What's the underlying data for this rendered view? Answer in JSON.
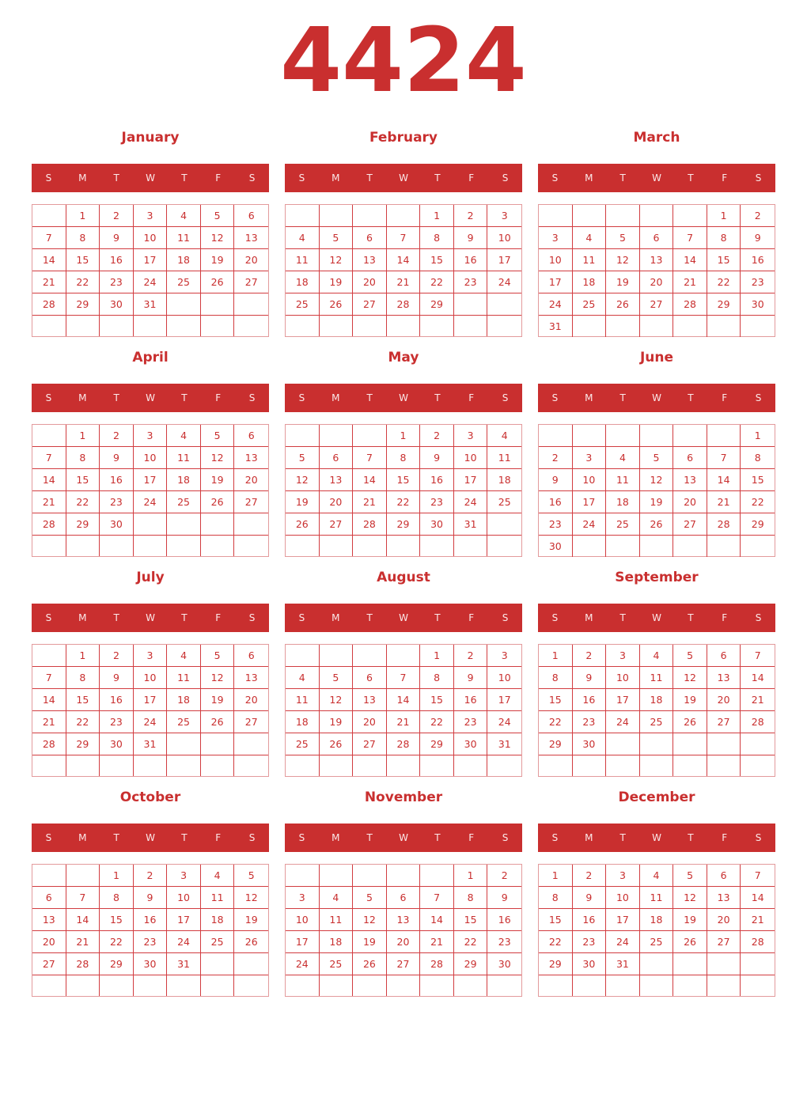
{
  "year": "4424",
  "weekdays": [
    "S",
    "M",
    "T",
    "W",
    "T",
    "F",
    "S"
  ],
  "months": [
    {
      "name": "January",
      "weeks": [
        [
          "",
          "1",
          "2",
          "3",
          "4",
          "5",
          "6"
        ],
        [
          "7",
          "8",
          "9",
          "10",
          "11",
          "12",
          "13"
        ],
        [
          "14",
          "15",
          "16",
          "17",
          "18",
          "19",
          "20"
        ],
        [
          "21",
          "22",
          "23",
          "24",
          "25",
          "26",
          "27"
        ],
        [
          "28",
          "29",
          "30",
          "31",
          "",
          "",
          ""
        ],
        [
          "",
          "",
          "",
          "",
          "",
          "",
          ""
        ]
      ]
    },
    {
      "name": "February",
      "weeks": [
        [
          "",
          "",
          "",
          "",
          "1",
          "2",
          "3"
        ],
        [
          "4",
          "5",
          "6",
          "7",
          "8",
          "9",
          "10"
        ],
        [
          "11",
          "12",
          "13",
          "14",
          "15",
          "16",
          "17"
        ],
        [
          "18",
          "19",
          "20",
          "21",
          "22",
          "23",
          "24"
        ],
        [
          "25",
          "26",
          "27",
          "28",
          "29",
          "",
          ""
        ],
        [
          "",
          "",
          "",
          "",
          "",
          "",
          ""
        ]
      ]
    },
    {
      "name": "March",
      "weeks": [
        [
          "",
          "",
          "",
          "",
          "",
          "1",
          "2"
        ],
        [
          "3",
          "4",
          "5",
          "6",
          "7",
          "8",
          "9"
        ],
        [
          "10",
          "11",
          "12",
          "13",
          "14",
          "15",
          "16"
        ],
        [
          "17",
          "18",
          "19",
          "20",
          "21",
          "22",
          "23"
        ],
        [
          "24",
          "25",
          "26",
          "27",
          "28",
          "29",
          "30"
        ],
        [
          "31",
          "",
          "",
          "",
          "",
          "",
          ""
        ]
      ]
    },
    {
      "name": "April",
      "weeks": [
        [
          "",
          "1",
          "2",
          "3",
          "4",
          "5",
          "6"
        ],
        [
          "7",
          "8",
          "9",
          "10",
          "11",
          "12",
          "13"
        ],
        [
          "14",
          "15",
          "16",
          "17",
          "18",
          "19",
          "20"
        ],
        [
          "21",
          "22",
          "23",
          "24",
          "25",
          "26",
          "27"
        ],
        [
          "28",
          "29",
          "30",
          "",
          "",
          "",
          ""
        ],
        [
          "",
          "",
          "",
          "",
          "",
          "",
          ""
        ]
      ]
    },
    {
      "name": "May",
      "weeks": [
        [
          "",
          "",
          "",
          "1",
          "2",
          "3",
          "4"
        ],
        [
          "5",
          "6",
          "7",
          "8",
          "9",
          "10",
          "11"
        ],
        [
          "12",
          "13",
          "14",
          "15",
          "16",
          "17",
          "18"
        ],
        [
          "19",
          "20",
          "21",
          "22",
          "23",
          "24",
          "25"
        ],
        [
          "26",
          "27",
          "28",
          "29",
          "30",
          "31",
          ""
        ],
        [
          "",
          "",
          "",
          "",
          "",
          "",
          ""
        ]
      ]
    },
    {
      "name": "June",
      "weeks": [
        [
          "",
          "",
          "",
          "",
          "",
          "",
          "1"
        ],
        [
          "2",
          "3",
          "4",
          "5",
          "6",
          "7",
          "8"
        ],
        [
          "9",
          "10",
          "11",
          "12",
          "13",
          "14",
          "15"
        ],
        [
          "16",
          "17",
          "18",
          "19",
          "20",
          "21",
          "22"
        ],
        [
          "23",
          "24",
          "25",
          "26",
          "27",
          "28",
          "29"
        ],
        [
          "30",
          "",
          "",
          "",
          "",
          "",
          ""
        ]
      ]
    },
    {
      "name": "July",
      "weeks": [
        [
          "",
          "1",
          "2",
          "3",
          "4",
          "5",
          "6"
        ],
        [
          "7",
          "8",
          "9",
          "10",
          "11",
          "12",
          "13"
        ],
        [
          "14",
          "15",
          "16",
          "17",
          "18",
          "19",
          "20"
        ],
        [
          "21",
          "22",
          "23",
          "24",
          "25",
          "26",
          "27"
        ],
        [
          "28",
          "29",
          "30",
          "31",
          "",
          "",
          ""
        ],
        [
          "",
          "",
          "",
          "",
          "",
          "",
          ""
        ]
      ]
    },
    {
      "name": "August",
      "weeks": [
        [
          "",
          "",
          "",
          "",
          "1",
          "2",
          "3"
        ],
        [
          "4",
          "5",
          "6",
          "7",
          "8",
          "9",
          "10"
        ],
        [
          "11",
          "12",
          "13",
          "14",
          "15",
          "16",
          "17"
        ],
        [
          "18",
          "19",
          "20",
          "21",
          "22",
          "23",
          "24"
        ],
        [
          "25",
          "26",
          "27",
          "28",
          "29",
          "30",
          "31"
        ],
        [
          "",
          "",
          "",
          "",
          "",
          "",
          ""
        ]
      ]
    },
    {
      "name": "September",
      "weeks": [
        [
          "1",
          "2",
          "3",
          "4",
          "5",
          "6",
          "7"
        ],
        [
          "8",
          "9",
          "10",
          "11",
          "12",
          "13",
          "14"
        ],
        [
          "15",
          "16",
          "17",
          "18",
          "19",
          "20",
          "21"
        ],
        [
          "22",
          "23",
          "24",
          "25",
          "26",
          "27",
          "28"
        ],
        [
          "29",
          "30",
          "",
          "",
          "",
          "",
          ""
        ],
        [
          "",
          "",
          "",
          "",
          "",
          "",
          ""
        ]
      ]
    },
    {
      "name": "October",
      "weeks": [
        [
          "",
          "",
          "1",
          "2",
          "3",
          "4",
          "5"
        ],
        [
          "6",
          "7",
          "8",
          "9",
          "10",
          "11",
          "12"
        ],
        [
          "13",
          "14",
          "15",
          "16",
          "17",
          "18",
          "19"
        ],
        [
          "20",
          "21",
          "22",
          "23",
          "24",
          "25",
          "26"
        ],
        [
          "27",
          "28",
          "29",
          "30",
          "31",
          "",
          ""
        ],
        [
          "",
          "",
          "",
          "",
          "",
          "",
          ""
        ]
      ]
    },
    {
      "name": "November",
      "weeks": [
        [
          "",
          "",
          "",
          "",
          "",
          "1",
          "2"
        ],
        [
          "3",
          "4",
          "5",
          "6",
          "7",
          "8",
          "9"
        ],
        [
          "10",
          "11",
          "12",
          "13",
          "14",
          "15",
          "16"
        ],
        [
          "17",
          "18",
          "19",
          "20",
          "21",
          "22",
          "23"
        ],
        [
          "24",
          "25",
          "26",
          "27",
          "28",
          "29",
          "30"
        ],
        [
          "",
          "",
          "",
          "",
          "",
          "",
          ""
        ]
      ]
    },
    {
      "name": "December",
      "weeks": [
        [
          "1",
          "2",
          "3",
          "4",
          "5",
          "6",
          "7"
        ],
        [
          "8",
          "9",
          "10",
          "11",
          "12",
          "13",
          "14"
        ],
        [
          "15",
          "16",
          "17",
          "18",
          "19",
          "20",
          "21"
        ],
        [
          "22",
          "23",
          "24",
          "25",
          "26",
          "27",
          "28"
        ],
        [
          "29",
          "30",
          "31",
          "",
          "",
          "",
          ""
        ],
        [
          "",
          "",
          "",
          "",
          "",
          "",
          ""
        ]
      ]
    }
  ],
  "colors": {
    "accent": "#c92f2f",
    "grid": "#d23c40"
  }
}
